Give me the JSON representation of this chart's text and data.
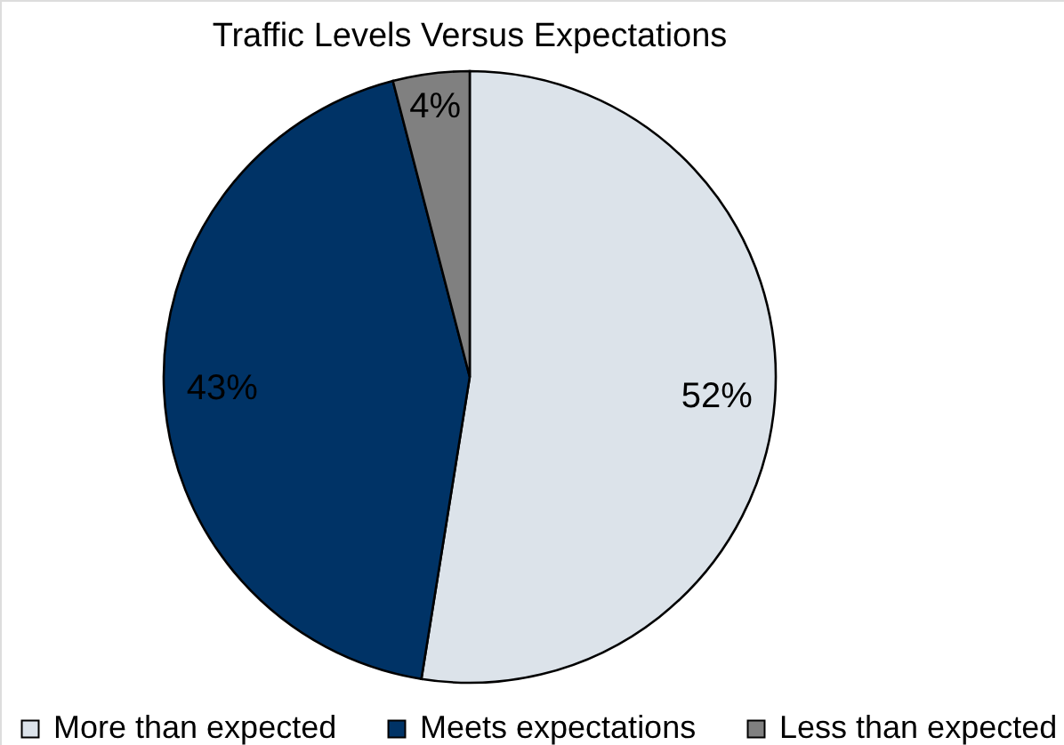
{
  "chart_data": {
    "type": "pie",
    "title": "Traffic Levels Versus Expectations",
    "categories": [
      "More than expected",
      "Meets expectations",
      "Less than expected"
    ],
    "values": [
      52,
      43,
      4
    ],
    "colors": [
      "#dce3ea",
      "#003366",
      "#808080"
    ],
    "value_labels": [
      "52%",
      "43%",
      "4%"
    ],
    "legend": "bottom"
  }
}
